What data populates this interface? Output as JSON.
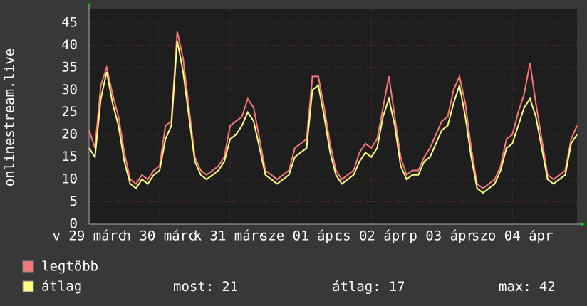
{
  "chart_data": {
    "type": "line",
    "ylabel": "onlinestream.live",
    "ylim": [
      0,
      48
    ],
    "yticks": [
      0,
      5,
      10,
      15,
      20,
      25,
      30,
      35,
      40,
      45
    ],
    "xlim": [
      0,
      83
    ],
    "xticks": [
      {
        "value": 0,
        "label": "v 29 márc"
      },
      {
        "value": 12,
        "label": "h 30 márc"
      },
      {
        "value": 24,
        "label": "k 31 márc"
      },
      {
        "value": 36,
        "label": "sze 01 ápr"
      },
      {
        "value": 48,
        "label": "cs 02 ápr"
      },
      {
        "value": 60,
        "label": "p 03 ápr"
      },
      {
        "value": 72,
        "label": "szo 04 ápr"
      }
    ],
    "grid": true,
    "series": [
      {
        "name": "legtöbb",
        "color": "#f87878",
        "values": [
          21,
          17,
          31,
          35,
          29,
          24,
          16,
          10,
          9,
          11,
          10,
          12,
          13,
          22,
          23,
          43,
          37,
          26,
          15,
          12,
          11,
          12,
          13,
          15,
          22,
          23,
          24,
          28,
          26,
          19,
          12,
          11,
          10,
          11,
          12,
          17,
          18,
          19,
          33,
          33,
          26,
          18,
          12,
          10,
          11,
          12,
          16,
          18,
          17,
          19,
          26,
          33,
          24,
          15,
          11,
          12,
          12,
          15,
          17,
          20,
          23,
          24,
          30,
          33,
          27,
          17,
          9,
          8,
          9,
          10,
          13,
          19,
          20,
          25,
          29,
          36,
          27,
          19,
          11,
          10,
          11,
          12,
          19,
          22
        ]
      },
      {
        "name": "átlag",
        "color": "#ffff80",
        "values": [
          17,
          15,
          28,
          34,
          27,
          22,
          14,
          9,
          8,
          10,
          9,
          11,
          12,
          19,
          22,
          41,
          34,
          24,
          14,
          11,
          10,
          11,
          12,
          14,
          19,
          20,
          22,
          25,
          23,
          17,
          11,
          10,
          9,
          10,
          11,
          15,
          16,
          17,
          30,
          31,
          24,
          16,
          11,
          9,
          10,
          11,
          14,
          16,
          15,
          17,
          24,
          28,
          22,
          13,
          10,
          11,
          11,
          14,
          15,
          18,
          21,
          22,
          27,
          31,
          24,
          15,
          8,
          7,
          8,
          9,
          12,
          17,
          18,
          22,
          26,
          28,
          24,
          17,
          10,
          9,
          10,
          11,
          18,
          20
        ]
      }
    ],
    "stats": [
      {
        "label": "most:",
        "value": 21
      },
      {
        "label": "átlag:",
        "value": 17
      },
      {
        "label": "max:",
        "value": 42
      }
    ]
  }
}
